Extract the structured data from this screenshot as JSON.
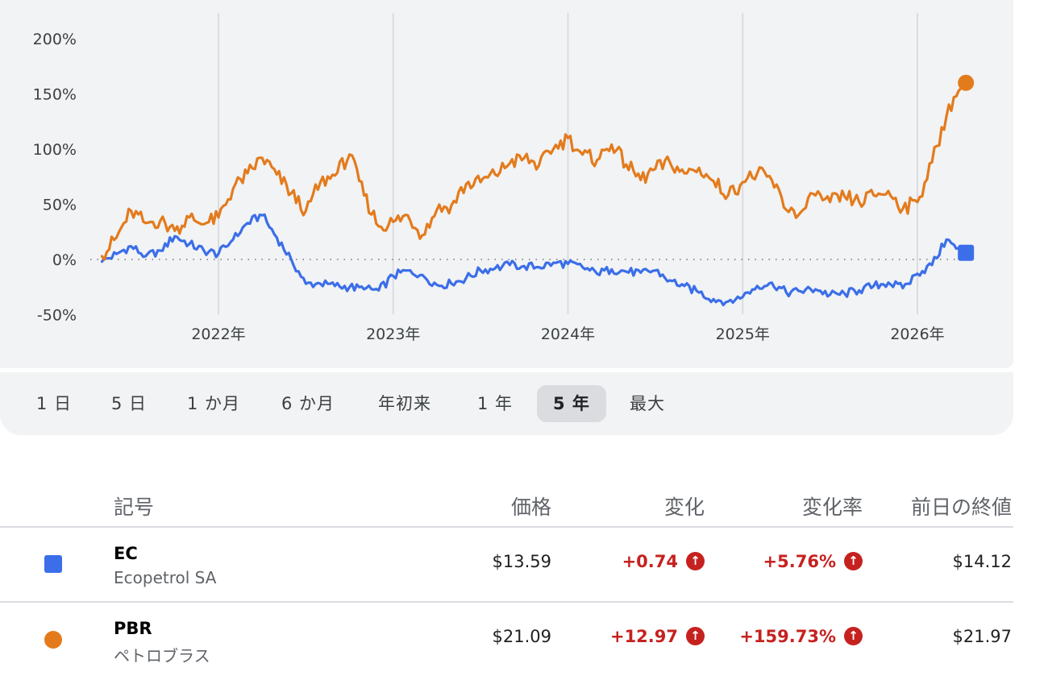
{
  "chart_data": {
    "type": "line",
    "y_ticks": [
      "200%",
      "150%",
      "100%",
      "50%",
      "0%",
      "-50%"
    ],
    "ylim": [
      -50,
      200
    ],
    "x_ticks": [
      "2022年",
      "2023年",
      "2024年",
      "2025年",
      "2026年"
    ],
    "series": [
      {
        "name": "EC",
        "color": "#3b6ee8",
        "marker": "square",
        "points": [
          [
            "2021-05",
            -2
          ],
          [
            "2021-06",
            5
          ],
          [
            "2021-07",
            12
          ],
          [
            "2021-08",
            3
          ],
          [
            "2021-09",
            8
          ],
          [
            "2021-10",
            21
          ],
          [
            "2021-11",
            14
          ],
          [
            "2021-12",
            8
          ],
          [
            "2022-01",
            5
          ],
          [
            "2022-02",
            18
          ],
          [
            "2022-03",
            33
          ],
          [
            "2022-04",
            40
          ],
          [
            "2022-05",
            20
          ],
          [
            "2022-06",
            0
          ],
          [
            "2022-07",
            -22
          ],
          [
            "2022-08",
            -22
          ],
          [
            "2022-09",
            -24
          ],
          [
            "2022-10",
            -25
          ],
          [
            "2022-11",
            -27
          ],
          [
            "2022-12",
            -28
          ],
          [
            "2023-01",
            -15
          ],
          [
            "2023-02",
            -10
          ],
          [
            "2023-03",
            -14
          ],
          [
            "2023-04",
            -23
          ],
          [
            "2023-05",
            -22
          ],
          [
            "2023-06",
            -17
          ],
          [
            "2023-07",
            -10
          ],
          [
            "2023-08",
            -8
          ],
          [
            "2023-09",
            -5
          ],
          [
            "2023-10",
            -6
          ],
          [
            "2023-11",
            -7
          ],
          [
            "2023-12",
            -3
          ],
          [
            "2024-01",
            -4
          ],
          [
            "2024-02",
            -7
          ],
          [
            "2024-03",
            -13
          ],
          [
            "2024-04",
            -9
          ],
          [
            "2024-05",
            -11
          ],
          [
            "2024-06",
            -12
          ],
          [
            "2024-07",
            -10
          ],
          [
            "2024-08",
            -19
          ],
          [
            "2024-09",
            -24
          ],
          [
            "2024-10",
            -30
          ],
          [
            "2024-11",
            -36
          ],
          [
            "2024-12",
            -38
          ],
          [
            "2025-01",
            -34
          ],
          [
            "2025-02",
            -24
          ],
          [
            "2025-03",
            -21
          ],
          [
            "2025-04",
            -30
          ],
          [
            "2025-05",
            -29
          ],
          [
            "2025-06",
            -27
          ],
          [
            "2025-07",
            -32
          ],
          [
            "2025-08",
            -31
          ],
          [
            "2025-09",
            -28
          ],
          [
            "2025-10",
            -24
          ],
          [
            "2025-11",
            -21
          ],
          [
            "2025-12",
            -26
          ],
          [
            "2026-01",
            -13
          ],
          [
            "2026-02",
            -5
          ],
          [
            "2026-03",
            18
          ],
          [
            "2026-04",
            6
          ]
        ]
      },
      {
        "name": "PBR",
        "color": "#e37b1d",
        "marker": "circle",
        "points": [
          [
            "2021-05",
            3
          ],
          [
            "2021-06",
            20
          ],
          [
            "2021-07",
            44
          ],
          [
            "2021-08",
            33
          ],
          [
            "2021-09",
            35
          ],
          [
            "2021-10",
            26
          ],
          [
            "2021-11",
            38
          ],
          [
            "2021-12",
            32
          ],
          [
            "2022-01",
            38
          ],
          [
            "2022-02",
            64
          ],
          [
            "2022-03",
            78
          ],
          [
            "2022-04",
            92
          ],
          [
            "2022-05",
            77
          ],
          [
            "2022-06",
            60
          ],
          [
            "2022-07",
            44
          ],
          [
            "2022-08",
            70
          ],
          [
            "2022-09",
            76
          ],
          [
            "2022-10",
            95
          ],
          [
            "2022-11",
            58
          ],
          [
            "2022-12",
            30
          ],
          [
            "2023-01",
            34
          ],
          [
            "2023-02",
            40
          ],
          [
            "2023-03",
            22
          ],
          [
            "2023-04",
            45
          ],
          [
            "2023-05",
            49
          ],
          [
            "2023-06",
            68
          ],
          [
            "2023-07",
            70
          ],
          [
            "2023-08",
            77
          ],
          [
            "2023-09",
            87
          ],
          [
            "2023-10",
            92
          ],
          [
            "2023-11",
            85
          ],
          [
            "2023-12",
            100
          ],
          [
            "2024-01",
            110
          ],
          [
            "2024-02",
            95
          ],
          [
            "2024-03",
            90
          ],
          [
            "2024-04",
            104
          ],
          [
            "2024-05",
            86
          ],
          [
            "2024-06",
            72
          ],
          [
            "2024-07",
            82
          ],
          [
            "2024-08",
            88
          ],
          [
            "2024-09",
            78
          ],
          [
            "2024-10",
            83
          ],
          [
            "2024-11",
            71
          ],
          [
            "2024-12",
            58
          ],
          [
            "2025-01",
            70
          ],
          [
            "2025-02",
            78
          ],
          [
            "2025-03",
            72
          ],
          [
            "2025-04",
            45
          ],
          [
            "2025-05",
            43
          ],
          [
            "2025-06",
            58
          ],
          [
            "2025-07",
            52
          ],
          [
            "2025-08",
            57
          ],
          [
            "2025-09",
            52
          ],
          [
            "2025-10",
            58
          ],
          [
            "2025-11",
            62
          ],
          [
            "2025-12",
            46
          ],
          [
            "2026-01",
            52
          ],
          [
            "2026-02",
            88
          ],
          [
            "2026-03",
            130
          ],
          [
            "2026-04",
            160
          ]
        ]
      }
    ],
    "grid": "vertical",
    "zero_line": "dotted"
  },
  "ranges": {
    "r1d": "1 日",
    "r5d": "5 日",
    "r1m": "1 か月",
    "r6m": "6 か月",
    "ytd": "年初来",
    "r1y": "1 年",
    "r5y": "5 年",
    "max": "最大",
    "active": "5 年"
  },
  "table": {
    "headers": {
      "symbol": "記号",
      "price": "価格",
      "change": "変化",
      "change_pct": "変化率",
      "prev_close": "前日の終値"
    },
    "rows": [
      {
        "symbol": "EC",
        "name": "Ecopetrol SA",
        "price": "$13.59",
        "change": "+0.74",
        "change_pct": "+5.76%",
        "prev_close": "$14.12",
        "color": "#3b6ee8"
      },
      {
        "symbol": "PBR",
        "name": "ペトロブラス",
        "price": "$21.09",
        "change": "+12.97",
        "change_pct": "+159.73%",
        "prev_close": "$21.97",
        "color": "#e37b1d"
      }
    ]
  },
  "icons": {
    "change_up": "arrow-up-circle-icon"
  }
}
